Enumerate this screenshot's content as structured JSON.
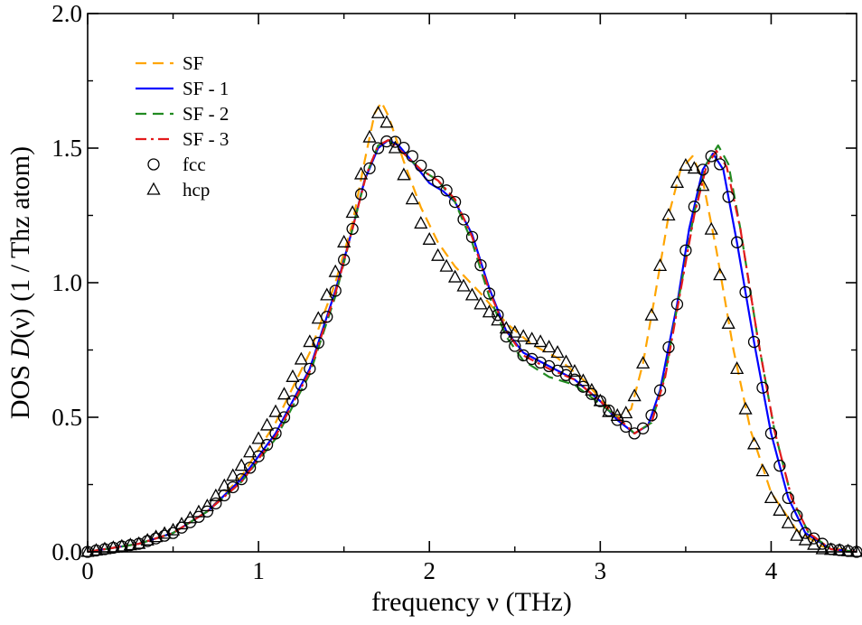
{
  "chart_data": {
    "type": "line",
    "xlabel_parts": [
      "frequency ",
      "ν",
      " (THz)"
    ],
    "ylabel_parts": [
      "DOS ",
      "D",
      "(ν) (1 / Thz atom)"
    ],
    "xlim": [
      0,
      4.5
    ],
    "ylim": [
      0,
      2.0
    ],
    "xticks": [
      0,
      1,
      2,
      3,
      4
    ],
    "xtick_labels": [
      "0",
      "1",
      "2",
      "3",
      "4"
    ],
    "yticks": [
      0,
      0.5,
      1.0,
      1.5,
      2.0
    ],
    "ytick_labels": [
      "0.0",
      "0.5",
      "1.0",
      "1.5",
      "2.0"
    ],
    "legend_position": "top-left",
    "series": [
      {
        "name": "SF",
        "style": "dashed",
        "color": "#ffa500",
        "points": [
          [
            0,
            0
          ],
          [
            0.3,
            0.03
          ],
          [
            0.5,
            0.07
          ],
          [
            0.7,
            0.15
          ],
          [
            0.9,
            0.28
          ],
          [
            1.1,
            0.48
          ],
          [
            1.3,
            0.74
          ],
          [
            1.45,
            1.0
          ],
          [
            1.55,
            1.22
          ],
          [
            1.62,
            1.45
          ],
          [
            1.68,
            1.63
          ],
          [
            1.72,
            1.67
          ],
          [
            1.76,
            1.62
          ],
          [
            1.85,
            1.45
          ],
          [
            1.95,
            1.28
          ],
          [
            2.05,
            1.15
          ],
          [
            2.15,
            1.06
          ],
          [
            2.3,
            0.96
          ],
          [
            2.45,
            0.85
          ],
          [
            2.6,
            0.77
          ],
          [
            2.75,
            0.72
          ],
          [
            2.9,
            0.64
          ],
          [
            3.0,
            0.57
          ],
          [
            3.1,
            0.5
          ],
          [
            3.18,
            0.53
          ],
          [
            3.25,
            0.7
          ],
          [
            3.32,
            0.95
          ],
          [
            3.4,
            1.25
          ],
          [
            3.47,
            1.42
          ],
          [
            3.54,
            1.47
          ],
          [
            3.6,
            1.38
          ],
          [
            3.68,
            1.12
          ],
          [
            3.78,
            0.75
          ],
          [
            3.88,
            0.45
          ],
          [
            4.0,
            0.22
          ],
          [
            4.15,
            0.08
          ],
          [
            4.3,
            0.02
          ],
          [
            4.5,
            0.0
          ]
        ]
      },
      {
        "name": "SF - 1",
        "style": "solid",
        "color": "#0000ff",
        "points": [
          [
            0,
            0
          ],
          [
            0.3,
            0.03
          ],
          [
            0.5,
            0.07
          ],
          [
            0.7,
            0.15
          ],
          [
            0.9,
            0.27
          ],
          [
            1.1,
            0.44
          ],
          [
            1.3,
            0.68
          ],
          [
            1.45,
            0.97
          ],
          [
            1.55,
            1.2
          ],
          [
            1.62,
            1.38
          ],
          [
            1.7,
            1.5
          ],
          [
            1.76,
            1.53
          ],
          [
            1.82,
            1.51
          ],
          [
            1.9,
            1.45
          ],
          [
            2.0,
            1.37
          ],
          [
            2.08,
            1.34
          ],
          [
            2.15,
            1.3
          ],
          [
            2.25,
            1.18
          ],
          [
            2.35,
            0.98
          ],
          [
            2.45,
            0.82
          ],
          [
            2.55,
            0.74
          ],
          [
            2.7,
            0.69
          ],
          [
            2.85,
            0.64
          ],
          [
            3.0,
            0.56
          ],
          [
            3.1,
            0.49
          ],
          [
            3.2,
            0.44
          ],
          [
            3.28,
            0.47
          ],
          [
            3.35,
            0.6
          ],
          [
            3.45,
            0.92
          ],
          [
            3.52,
            1.2
          ],
          [
            3.6,
            1.42
          ],
          [
            3.66,
            1.48
          ],
          [
            3.72,
            1.42
          ],
          [
            3.8,
            1.15
          ],
          [
            3.9,
            0.78
          ],
          [
            4.0,
            0.44
          ],
          [
            4.1,
            0.2
          ],
          [
            4.2,
            0.07
          ],
          [
            4.35,
            0.01
          ],
          [
            4.5,
            0.0
          ]
        ]
      },
      {
        "name": "SF - 2",
        "style": "dashed",
        "color": "#228b22",
        "points": [
          [
            0,
            0
          ],
          [
            0.3,
            0.03
          ],
          [
            0.5,
            0.07
          ],
          [
            0.7,
            0.15
          ],
          [
            0.9,
            0.26
          ],
          [
            1.1,
            0.42
          ],
          [
            1.3,
            0.66
          ],
          [
            1.45,
            0.95
          ],
          [
            1.55,
            1.2
          ],
          [
            1.63,
            1.4
          ],
          [
            1.7,
            1.51
          ],
          [
            1.76,
            1.53
          ],
          [
            1.85,
            1.48
          ],
          [
            1.95,
            1.42
          ],
          [
            2.05,
            1.38
          ],
          [
            2.15,
            1.3
          ],
          [
            2.25,
            1.15
          ],
          [
            2.35,
            0.95
          ],
          [
            2.45,
            0.8
          ],
          [
            2.55,
            0.71
          ],
          [
            2.7,
            0.65
          ],
          [
            2.85,
            0.62
          ],
          [
            3.0,
            0.55
          ],
          [
            3.1,
            0.5
          ],
          [
            3.2,
            0.44
          ],
          [
            3.3,
            0.48
          ],
          [
            3.38,
            0.66
          ],
          [
            3.47,
            0.98
          ],
          [
            3.55,
            1.26
          ],
          [
            3.62,
            1.44
          ],
          [
            3.69,
            1.51
          ],
          [
            3.75,
            1.44
          ],
          [
            3.82,
            1.2
          ],
          [
            3.92,
            0.8
          ],
          [
            4.02,
            0.45
          ],
          [
            4.12,
            0.2
          ],
          [
            4.22,
            0.07
          ],
          [
            4.35,
            0.01
          ],
          [
            4.5,
            0.0
          ]
        ]
      },
      {
        "name": "SF - 3",
        "style": "dashdot",
        "color": "#e31a1c",
        "points": [
          [
            0,
            0
          ],
          [
            0.3,
            0.03
          ],
          [
            0.5,
            0.07
          ],
          [
            0.7,
            0.15
          ],
          [
            0.9,
            0.26
          ],
          [
            1.1,
            0.43
          ],
          [
            1.3,
            0.67
          ],
          [
            1.45,
            0.96
          ],
          [
            1.55,
            1.2
          ],
          [
            1.63,
            1.4
          ],
          [
            1.7,
            1.51
          ],
          [
            1.76,
            1.53
          ],
          [
            1.85,
            1.48
          ],
          [
            1.95,
            1.42
          ],
          [
            2.05,
            1.38
          ],
          [
            2.15,
            1.31
          ],
          [
            2.25,
            1.17
          ],
          [
            2.35,
            0.97
          ],
          [
            2.45,
            0.82
          ],
          [
            2.55,
            0.73
          ],
          [
            2.7,
            0.68
          ],
          [
            2.85,
            0.64
          ],
          [
            3.0,
            0.56
          ],
          [
            3.1,
            0.5
          ],
          [
            3.2,
            0.44
          ],
          [
            3.3,
            0.48
          ],
          [
            3.38,
            0.65
          ],
          [
            3.47,
            0.97
          ],
          [
            3.55,
            1.25
          ],
          [
            3.62,
            1.43
          ],
          [
            3.68,
            1.49
          ],
          [
            3.74,
            1.43
          ],
          [
            3.82,
            1.2
          ],
          [
            3.92,
            0.8
          ],
          [
            4.02,
            0.45
          ],
          [
            4.12,
            0.2
          ],
          [
            4.22,
            0.07
          ],
          [
            4.35,
            0.01
          ],
          [
            4.5,
            0.0
          ]
        ]
      },
      {
        "name": "fcc",
        "marker": "circle",
        "color": "#000000",
        "step": 0.05,
        "points": [
          [
            0,
            0
          ],
          [
            0.3,
            0.03
          ],
          [
            0.5,
            0.07
          ],
          [
            0.7,
            0.15
          ],
          [
            0.9,
            0.27
          ],
          [
            1.1,
            0.44
          ],
          [
            1.3,
            0.68
          ],
          [
            1.45,
            0.97
          ],
          [
            1.55,
            1.2
          ],
          [
            1.62,
            1.38
          ],
          [
            1.7,
            1.5
          ],
          [
            1.76,
            1.53
          ],
          [
            1.82,
            1.52
          ],
          [
            1.9,
            1.47
          ],
          [
            2.0,
            1.4
          ],
          [
            2.08,
            1.36
          ],
          [
            2.15,
            1.3
          ],
          [
            2.25,
            1.17
          ],
          [
            2.35,
            0.96
          ],
          [
            2.45,
            0.8
          ],
          [
            2.55,
            0.73
          ],
          [
            2.7,
            0.69
          ],
          [
            2.85,
            0.64
          ],
          [
            3.0,
            0.56
          ],
          [
            3.1,
            0.49
          ],
          [
            3.2,
            0.44
          ],
          [
            3.28,
            0.47
          ],
          [
            3.35,
            0.6
          ],
          [
            3.45,
            0.92
          ],
          [
            3.52,
            1.2
          ],
          [
            3.6,
            1.42
          ],
          [
            3.66,
            1.48
          ],
          [
            3.72,
            1.42
          ],
          [
            3.8,
            1.15
          ],
          [
            3.9,
            0.78
          ],
          [
            4.0,
            0.44
          ],
          [
            4.1,
            0.2
          ],
          [
            4.2,
            0.07
          ],
          [
            4.35,
            0.01
          ],
          [
            4.5,
            0.0
          ]
        ]
      },
      {
        "name": "hcp",
        "marker": "triangle",
        "color": "#000000",
        "step": 0.05,
        "points": [
          [
            0,
            0
          ],
          [
            0.3,
            0.03
          ],
          [
            0.5,
            0.08
          ],
          [
            0.7,
            0.17
          ],
          [
            0.9,
            0.32
          ],
          [
            1.1,
            0.52
          ],
          [
            1.3,
            0.78
          ],
          [
            1.45,
            1.04
          ],
          [
            1.55,
            1.26
          ],
          [
            1.62,
            1.46
          ],
          [
            1.68,
            1.62
          ],
          [
            1.72,
            1.64
          ],
          [
            1.76,
            1.58
          ],
          [
            1.85,
            1.4
          ],
          [
            1.95,
            1.22
          ],
          [
            2.05,
            1.1
          ],
          [
            2.15,
            1.02
          ],
          [
            2.3,
            0.92
          ],
          [
            2.45,
            0.83
          ],
          [
            2.55,
            0.8
          ],
          [
            2.65,
            0.78
          ],
          [
            2.75,
            0.74
          ],
          [
            2.85,
            0.67
          ],
          [
            2.95,
            0.6
          ],
          [
            3.05,
            0.52
          ],
          [
            3.12,
            0.5
          ],
          [
            3.18,
            0.53
          ],
          [
            3.25,
            0.7
          ],
          [
            3.32,
            0.95
          ],
          [
            3.4,
            1.25
          ],
          [
            3.47,
            1.42
          ],
          [
            3.53,
            1.45
          ],
          [
            3.6,
            1.36
          ],
          [
            3.68,
            1.1
          ],
          [
            3.78,
            0.74
          ],
          [
            3.88,
            0.44
          ],
          [
            4.0,
            0.2
          ],
          [
            4.15,
            0.06
          ],
          [
            4.3,
            0.01
          ],
          [
            4.5,
            0.0
          ]
        ]
      }
    ]
  }
}
